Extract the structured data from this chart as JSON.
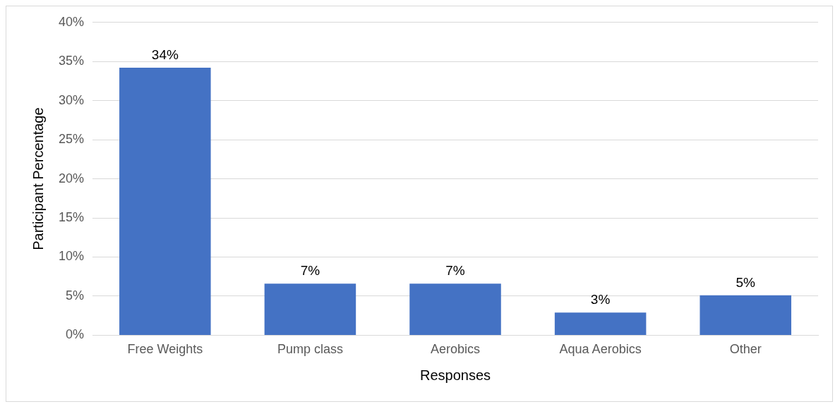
{
  "chart_data": {
    "type": "bar",
    "xlabel": "Responses",
    "ylabel": "Participant Percentage",
    "categories": [
      "Free Weights",
      "Pump class",
      "Aerobics",
      "Aqua Aerobics",
      "Other"
    ],
    "values": [
      34.2,
      6.6,
      6.6,
      2.9,
      5.1
    ],
    "value_labels": [
      "34%",
      "7%",
      "7%",
      "3%",
      "5%"
    ],
    "color": "#4472c4",
    "ylim": [
      0,
      40
    ],
    "yticks": [
      {
        "value": 0,
        "label": "0%"
      },
      {
        "value": 5,
        "label": "5%"
      },
      {
        "value": 10,
        "label": "10%"
      },
      {
        "value": 15,
        "label": "15%"
      },
      {
        "value": 20,
        "label": "20%"
      },
      {
        "value": 25,
        "label": "25%"
      },
      {
        "value": 30,
        "label": "30%"
      },
      {
        "value": 35,
        "label": "35%"
      },
      {
        "value": 40,
        "label": "40%"
      }
    ],
    "grid": "y",
    "legend": false
  }
}
